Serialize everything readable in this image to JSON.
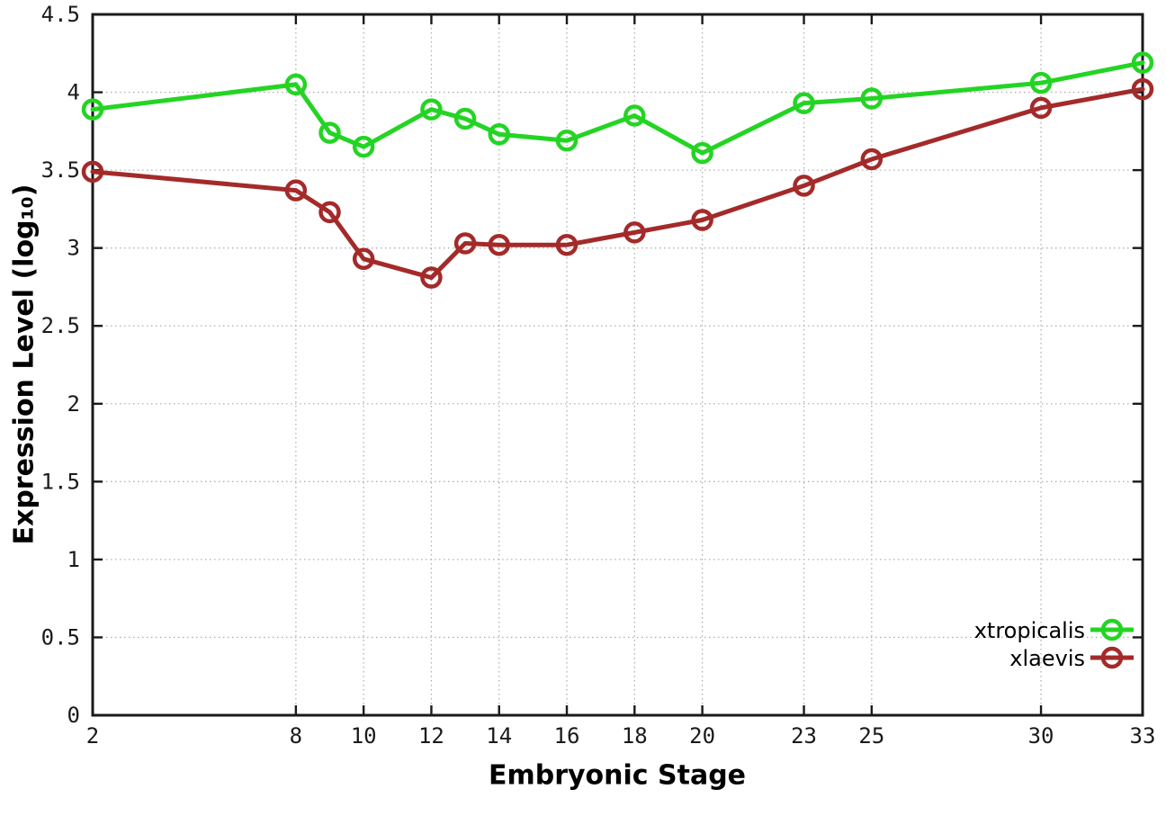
{
  "chart_data": {
    "type": "line",
    "title": "",
    "xlabel": "Embryonic Stage",
    "ylabel": "Expression Level (log10)",
    "ylabel_display": "Expression Level (log₁₀)",
    "x": [
      2,
      8,
      9,
      10,
      12,
      13,
      14,
      16,
      18,
      20,
      23,
      25,
      30,
      33
    ],
    "series": [
      {
        "name": "xtropicalis",
        "color": "#24d424",
        "values": [
          3.89,
          4.05,
          3.74,
          3.65,
          3.89,
          3.83,
          3.73,
          3.69,
          3.85,
          3.61,
          3.93,
          3.96,
          4.06,
          4.19
        ]
      },
      {
        "name": "xlaevis",
        "color": "#a42a2a",
        "values": [
          3.49,
          3.37,
          3.23,
          2.93,
          2.81,
          3.03,
          3.02,
          3.02,
          3.1,
          3.18,
          3.4,
          3.57,
          3.9,
          4.02
        ]
      }
    ],
    "xlim": [
      2,
      33
    ],
    "ylim": [
      0,
      4.5
    ],
    "xticks": [
      2,
      8,
      10,
      12,
      14,
      16,
      18,
      20,
      23,
      25,
      30,
      33
    ],
    "xtick_labels": [
      "2",
      "8",
      "10",
      "12",
      "14",
      "16",
      "18",
      "20",
      "23",
      "25",
      "30",
      "33"
    ],
    "yticks": [
      0,
      0.5,
      1,
      1.5,
      2,
      2.5,
      3,
      3.5,
      4,
      4.5
    ],
    "ytick_labels": [
      "0",
      "0.5",
      "1",
      "1.5",
      "2",
      "2.5",
      "3",
      "3.5",
      "4",
      "4.5"
    ],
    "grid": true,
    "grid_style": "dotted",
    "legend_position": "inside-bottom-right",
    "marker": "open-circle",
    "colors": {
      "border": "#1a1a1a",
      "tick_text": "#1a1a1a",
      "grid": "#b0b0b0",
      "background": "#ffffff"
    }
  }
}
